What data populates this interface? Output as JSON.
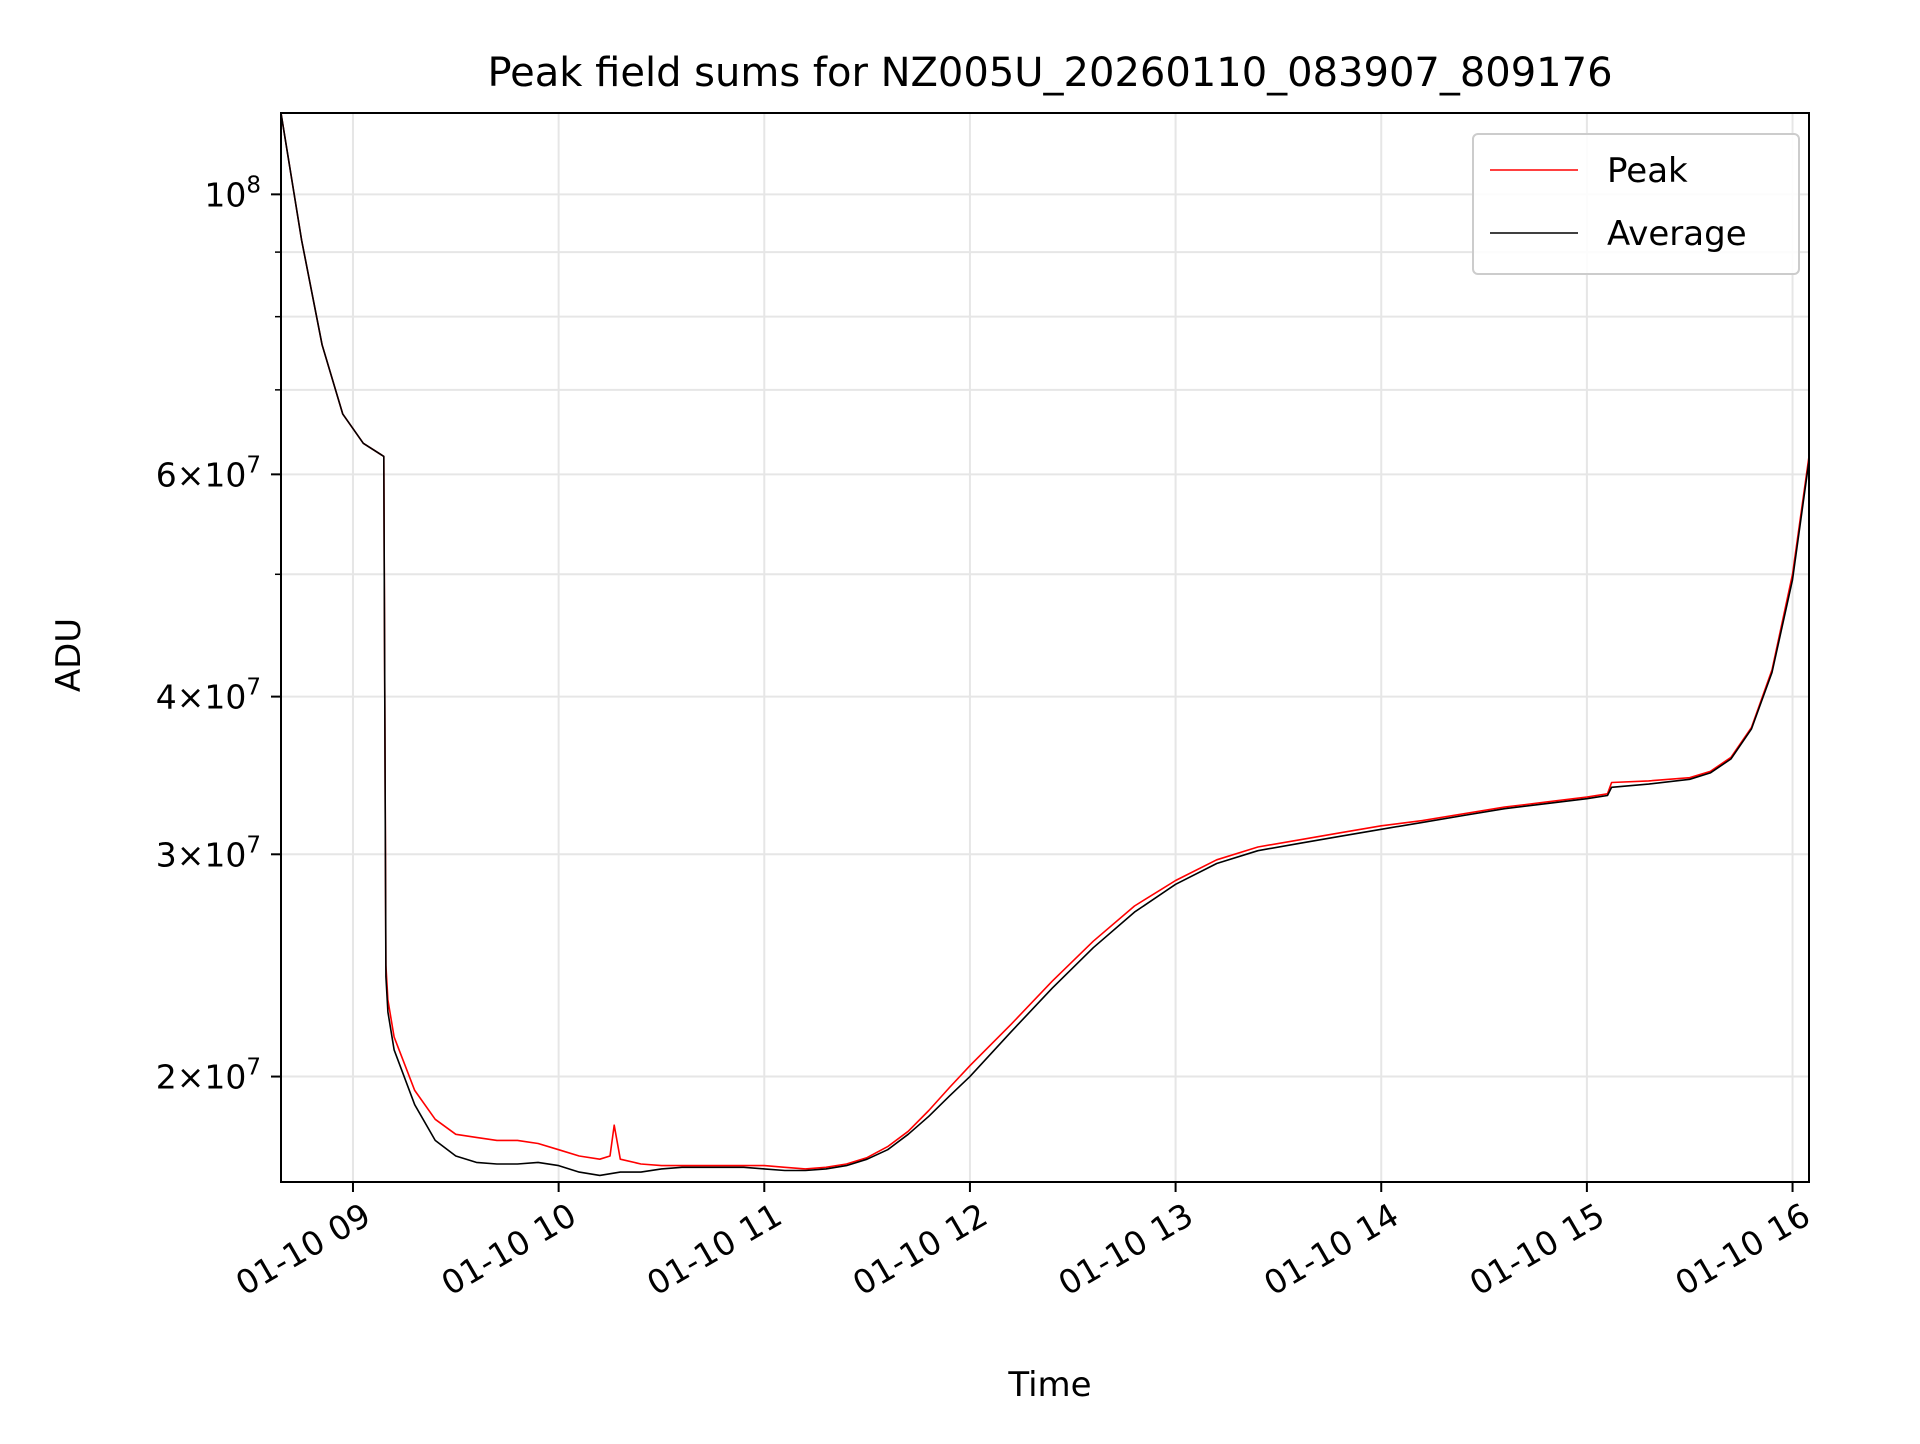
{
  "chart_data": {
    "type": "line",
    "title": "Peak field sums for NZ005U_20260110_083907_809176",
    "xlabel": "Time",
    "ylabel": "ADU",
    "yscale": "log",
    "xlim": [
      8.65,
      16.08
    ],
    "ylim": [
      16500000,
      116000000
    ],
    "grid": true,
    "legend_position": "top-right",
    "x_ticks": [
      {
        "value": 9,
        "label": "01-10 09"
      },
      {
        "value": 10,
        "label": "01-10 10"
      },
      {
        "value": 11,
        "label": "01-10 11"
      },
      {
        "value": 12,
        "label": "01-10 12"
      },
      {
        "value": 13,
        "label": "01-10 13"
      },
      {
        "value": 14,
        "label": "01-10 14"
      },
      {
        "value": 15,
        "label": "01-10 15"
      },
      {
        "value": 16,
        "label": "01-10 16"
      }
    ],
    "y_ticks": [
      {
        "value": 20000000,
        "mantissa": "2",
        "exponent": "7"
      },
      {
        "value": 30000000,
        "mantissa": "3",
        "exponent": "7"
      },
      {
        "value": 40000000,
        "mantissa": "4",
        "exponent": "7"
      },
      {
        "value": 60000000,
        "mantissa": "6",
        "exponent": "7"
      },
      {
        "value": 100000000,
        "mantissa": "",
        "exponent": "8"
      }
    ],
    "y_minor_ticks": [
      50000000,
      70000000,
      80000000,
      90000000
    ],
    "tick_base": "10",
    "times_sign": "×",
    "series": [
      {
        "name": "Peak",
        "color": "#ff0000",
        "x": [
          8.65,
          8.75,
          8.85,
          8.95,
          9.05,
          9.15,
          9.16,
          9.17,
          9.2,
          9.3,
          9.4,
          9.5,
          9.6,
          9.7,
          9.8,
          9.9,
          10.0,
          10.1,
          10.2,
          10.25,
          10.27,
          10.3,
          10.4,
          10.5,
          10.6,
          10.7,
          10.8,
          10.9,
          11.0,
          11.1,
          11.2,
          11.3,
          11.4,
          11.5,
          11.6,
          11.7,
          11.8,
          11.9,
          12.0,
          12.2,
          12.4,
          12.6,
          12.8,
          13.0,
          13.2,
          13.4,
          13.6,
          13.8,
          14.0,
          14.2,
          14.4,
          14.6,
          14.8,
          15.0,
          15.1,
          15.12,
          15.3,
          15.5,
          15.6,
          15.7,
          15.8,
          15.9,
          16.0,
          16.08
        ],
        "y": [
          116000000,
          92000000,
          76000000,
          67000000,
          63500000,
          62000000,
          24500000,
          23000000,
          21500000,
          19500000,
          18500000,
          18000000,
          17900000,
          17800000,
          17800000,
          17700000,
          17500000,
          17300000,
          17200000,
          17300000,
          18300000,
          17200000,
          17050000,
          17000000,
          17000000,
          17000000,
          17000000,
          17000000,
          17000000,
          16950000,
          16900000,
          16950000,
          17050000,
          17250000,
          17600000,
          18100000,
          18800000,
          19600000,
          20400000,
          22000000,
          23800000,
          25600000,
          27300000,
          28600000,
          29700000,
          30400000,
          30800000,
          31200000,
          31600000,
          31900000,
          32300000,
          32700000,
          33000000,
          33300000,
          33500000,
          34200000,
          34300000,
          34500000,
          34900000,
          35800000,
          37800000,
          42000000,
          50000000,
          62000000
        ]
      },
      {
        "name": "Average",
        "color": "#000000",
        "x": [
          8.65,
          8.75,
          8.85,
          8.95,
          9.05,
          9.15,
          9.16,
          9.17,
          9.2,
          9.3,
          9.4,
          9.5,
          9.6,
          9.7,
          9.8,
          9.9,
          10.0,
          10.1,
          10.2,
          10.3,
          10.4,
          10.5,
          10.6,
          10.7,
          10.8,
          10.9,
          11.0,
          11.1,
          11.2,
          11.3,
          11.4,
          11.5,
          11.6,
          11.7,
          11.8,
          11.9,
          12.0,
          12.2,
          12.4,
          12.6,
          12.8,
          13.0,
          13.2,
          13.4,
          13.6,
          13.8,
          14.0,
          14.2,
          14.4,
          14.6,
          14.8,
          15.0,
          15.1,
          15.12,
          15.3,
          15.5,
          15.6,
          15.7,
          15.8,
          15.9,
          16.0,
          16.08
        ],
        "y": [
          116000000,
          92000000,
          76000000,
          67000000,
          63500000,
          62000000,
          24000000,
          22500000,
          21000000,
          19000000,
          17800000,
          17300000,
          17100000,
          17050000,
          17050000,
          17100000,
          17000000,
          16800000,
          16700000,
          16800000,
          16800000,
          16900000,
          16950000,
          16950000,
          16950000,
          16950000,
          16900000,
          16850000,
          16850000,
          16900000,
          17000000,
          17200000,
          17500000,
          18000000,
          18600000,
          19300000,
          20000000,
          21700000,
          23500000,
          25300000,
          27000000,
          28400000,
          29500000,
          30200000,
          30600000,
          31000000,
          31400000,
          31800000,
          32200000,
          32600000,
          32900000,
          33200000,
          33400000,
          33900000,
          34100000,
          34400000,
          34800000,
          35700000,
          37700000,
          41800000,
          49500000,
          61500000
        ]
      }
    ]
  }
}
